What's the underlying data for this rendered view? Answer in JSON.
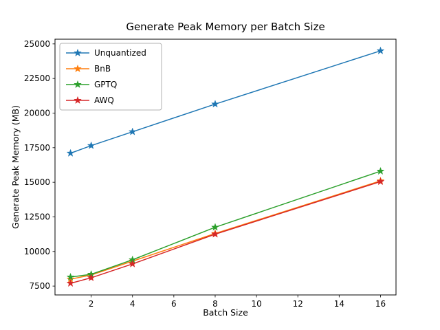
{
  "chart_data": {
    "type": "line",
    "title": "Generate Peak Memory per Batch Size",
    "xlabel": "Batch Size",
    "ylabel": "Generate Peak Memory (MB)",
    "x": [
      1,
      2,
      4,
      8,
      16
    ],
    "xticks": [
      2,
      4,
      6,
      8,
      10,
      12,
      14,
      16
    ],
    "yticks": [
      7500,
      10000,
      12500,
      15000,
      17500,
      20000,
      22500,
      25000
    ],
    "xlim": [
      0.25,
      16.75
    ],
    "ylim": [
      6860,
      25340
    ],
    "grid": false,
    "legend_position": "upper left",
    "marker": "star",
    "series": [
      {
        "name": "Unquantized",
        "color": "#1f77b4",
        "values": [
          17100,
          17650,
          18650,
          20650,
          24500
        ]
      },
      {
        "name": "BnB",
        "color": "#ff7f0e",
        "values": [
          8000,
          8300,
          9300,
          11300,
          15100
        ]
      },
      {
        "name": "GPTQ",
        "color": "#2ca02c",
        "values": [
          8150,
          8350,
          9400,
          11750,
          15800
        ]
      },
      {
        "name": "AWQ",
        "color": "#d62728",
        "values": [
          7700,
          8100,
          9100,
          11250,
          15050
        ]
      }
    ]
  }
}
